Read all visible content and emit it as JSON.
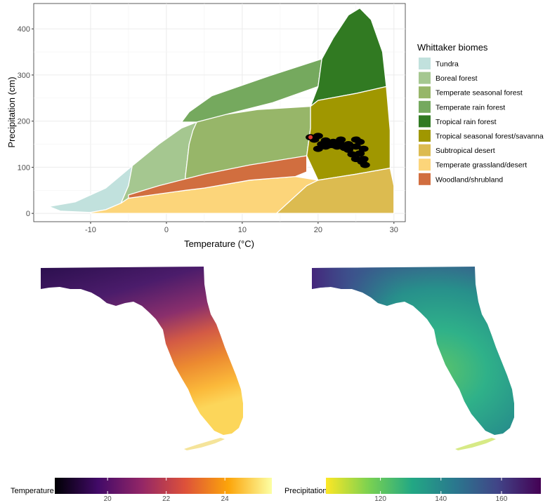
{
  "chart_data": [
    {
      "type": "area",
      "title": "",
      "xlabel": "Temperature (°C)",
      "ylabel": "Precipitation (cm)",
      "xlim": [
        -17.5,
        31.5
      ],
      "ylim": [
        -18,
        455
      ],
      "x_ticks": [
        -10,
        0,
        10,
        20,
        30
      ],
      "y_ticks": [
        0,
        100,
        200,
        300,
        400
      ],
      "grid": true,
      "legend_title": "Whittaker biomes",
      "legend_position": "right",
      "series": [
        {
          "name": "Tundra",
          "color": "#C1E1DD",
          "polygon": [
            [
              -15.5,
              15
            ],
            [
              -12,
              25
            ],
            [
              -8,
              55
            ],
            [
              -4.5,
              103
            ],
            [
              -5,
              60
            ],
            [
              -6,
              22
            ],
            [
              -8,
              8
            ],
            [
              -10,
              2
            ],
            [
              -14,
              5
            ]
          ]
        },
        {
          "name": "Boreal forest",
          "color": "#A5C790",
          "polygon": [
            [
              -4.5,
              103
            ],
            [
              -1,
              150
            ],
            [
              2,
              185
            ],
            [
              4,
              198
            ],
            [
              3,
              150
            ],
            [
              2.5,
              80
            ],
            [
              2.5,
              50
            ],
            [
              -1,
              42
            ],
            [
              -5,
              33
            ],
            [
              -6,
              22
            ],
            [
              -5,
              60
            ]
          ]
        },
        {
          "name": "Temperate seasonal forest",
          "color": "#97B669",
          "polygon": [
            [
              4,
              198
            ],
            [
              3.5,
              180
            ],
            [
              3,
              150
            ],
            [
              2.5,
              80
            ],
            [
              2.5,
              50
            ],
            [
              5,
              55
            ],
            [
              11,
              72
            ],
            [
              18.5,
              125
            ],
            [
              19,
              185
            ],
            [
              19,
              232
            ],
            [
              12,
              225
            ],
            [
              6,
              210
            ]
          ]
        },
        {
          "name": "Temperate rain forest",
          "color": "#75A95E",
          "polygon": [
            [
              4,
              198
            ],
            [
              8,
              215
            ],
            [
              14,
              240
            ],
            [
              20,
              275
            ],
            [
              20.5,
              335
            ],
            [
              13,
              295
            ],
            [
              6,
              255
            ],
            [
              3,
              220
            ],
            [
              2,
              198
            ]
          ]
        },
        {
          "name": "Tropical rain forest",
          "color": "#317A22",
          "polygon": [
            [
              20.5,
              335
            ],
            [
              22,
              380
            ],
            [
              24,
              430
            ],
            [
              25.5,
              445
            ],
            [
              27,
              420
            ],
            [
              28.5,
              350
            ],
            [
              29,
              275
            ],
            [
              25,
              260
            ],
            [
              20,
              245
            ],
            [
              19,
              232
            ],
            [
              20,
              275
            ]
          ]
        },
        {
          "name": "Tropical seasonal forest/savanna",
          "color": "#A09700",
          "polygon": [
            [
              19,
              232
            ],
            [
              20,
              245
            ],
            [
              25,
              260
            ],
            [
              29,
              275
            ],
            [
              29.5,
              180
            ],
            [
              29.5,
              98
            ],
            [
              25,
              85
            ],
            [
              20,
              72
            ],
            [
              18.5,
              125
            ],
            [
              19,
              185
            ]
          ]
        },
        {
          "name": "Subtropical desert",
          "color": "#DCBB50",
          "polygon": [
            [
              14.5,
              0
            ],
            [
              16.5,
              30
            ],
            [
              18.5,
              60
            ],
            [
              20,
              72
            ],
            [
              25,
              85
            ],
            [
              29.5,
              98
            ],
            [
              30,
              60
            ],
            [
              30,
              0
            ]
          ]
        },
        {
          "name": "Temperate grassland/desert",
          "color": "#FCD57A",
          "polygon": [
            [
              -8,
              8
            ],
            [
              -6,
              22
            ],
            [
              -5,
              33
            ],
            [
              -1,
              42
            ],
            [
              2.5,
              50
            ],
            [
              5,
              55
            ],
            [
              11,
              72
            ],
            [
              17,
              80
            ],
            [
              20,
              72
            ],
            [
              18.5,
              60
            ],
            [
              16.5,
              30
            ],
            [
              14.5,
              0
            ],
            [
              -10,
              0
            ],
            [
              -10,
              2
            ]
          ]
        },
        {
          "name": "Woodland/shrubland",
          "color": "#D16E3F",
          "polygon": [
            [
              -5,
              33
            ],
            [
              -1,
              42
            ],
            [
              2.5,
              50
            ],
            [
              5,
              55
            ],
            [
              11,
              72
            ],
            [
              17,
              80
            ],
            [
              18.5,
              90
            ],
            [
              18.5,
              125
            ],
            [
              11,
              105
            ],
            [
              5,
              85
            ],
            [
              -1,
              60
            ],
            [
              -5,
              40
            ]
          ]
        }
      ],
      "observations": {
        "name": "",
        "color": "#000000",
        "highlight_color": "#E23C2E",
        "points": [
          [
            19,
            165
          ],
          [
            19.5,
            160
          ],
          [
            20,
            168
          ],
          [
            20.5,
            150
          ],
          [
            21,
            158
          ],
          [
            21.5,
            148
          ],
          [
            22,
            155
          ],
          [
            22.5,
            145
          ],
          [
            23,
            150
          ],
          [
            23,
            160
          ],
          [
            24,
            150
          ],
          [
            24,
            138
          ],
          [
            25,
            145
          ],
          [
            25,
            160
          ],
          [
            25.5,
            155
          ],
          [
            25.5,
            130
          ],
          [
            26,
            140
          ],
          [
            26,
            118
          ],
          [
            25.8,
            112
          ],
          [
            26.2,
            105
          ],
          [
            20,
            140
          ],
          [
            21,
            145
          ],
          [
            22,
            148
          ],
          [
            23.5,
            142
          ],
          [
            24.5,
            128
          ],
          [
            25,
            118
          ]
        ]
      }
    },
    {
      "type": "heatmap",
      "title": "",
      "colorbar_title": "Temperature",
      "colorbar_range": [
        18.2,
        25.6
      ],
      "colorbar_ticks": [
        20,
        22,
        24
      ],
      "colorscale": "inferno",
      "colors": [
        "#000004",
        "#420A68",
        "#932667",
        "#DD513A",
        "#FCA50A",
        "#FCFFA4"
      ]
    },
    {
      "type": "heatmap",
      "title": "",
      "colorbar_title": "Precipitation",
      "colorbar_range": [
        102,
        173
      ],
      "colorbar_ticks": [
        120,
        140,
        160
      ],
      "colorscale": "viridis (reversed)",
      "colors": [
        "#FDE725",
        "#7AD151",
        "#22A884",
        "#2A788E",
        "#414487",
        "#440154"
      ]
    }
  ],
  "map_colors": {
    "temp_north": "#3F1A6A",
    "temp_mid": "#A6386A",
    "temp_south": "#FCB43A",
    "precip_base": "#2FB189",
    "precip_west": "#3F4A8A",
    "precip_light": "#7BD170"
  }
}
